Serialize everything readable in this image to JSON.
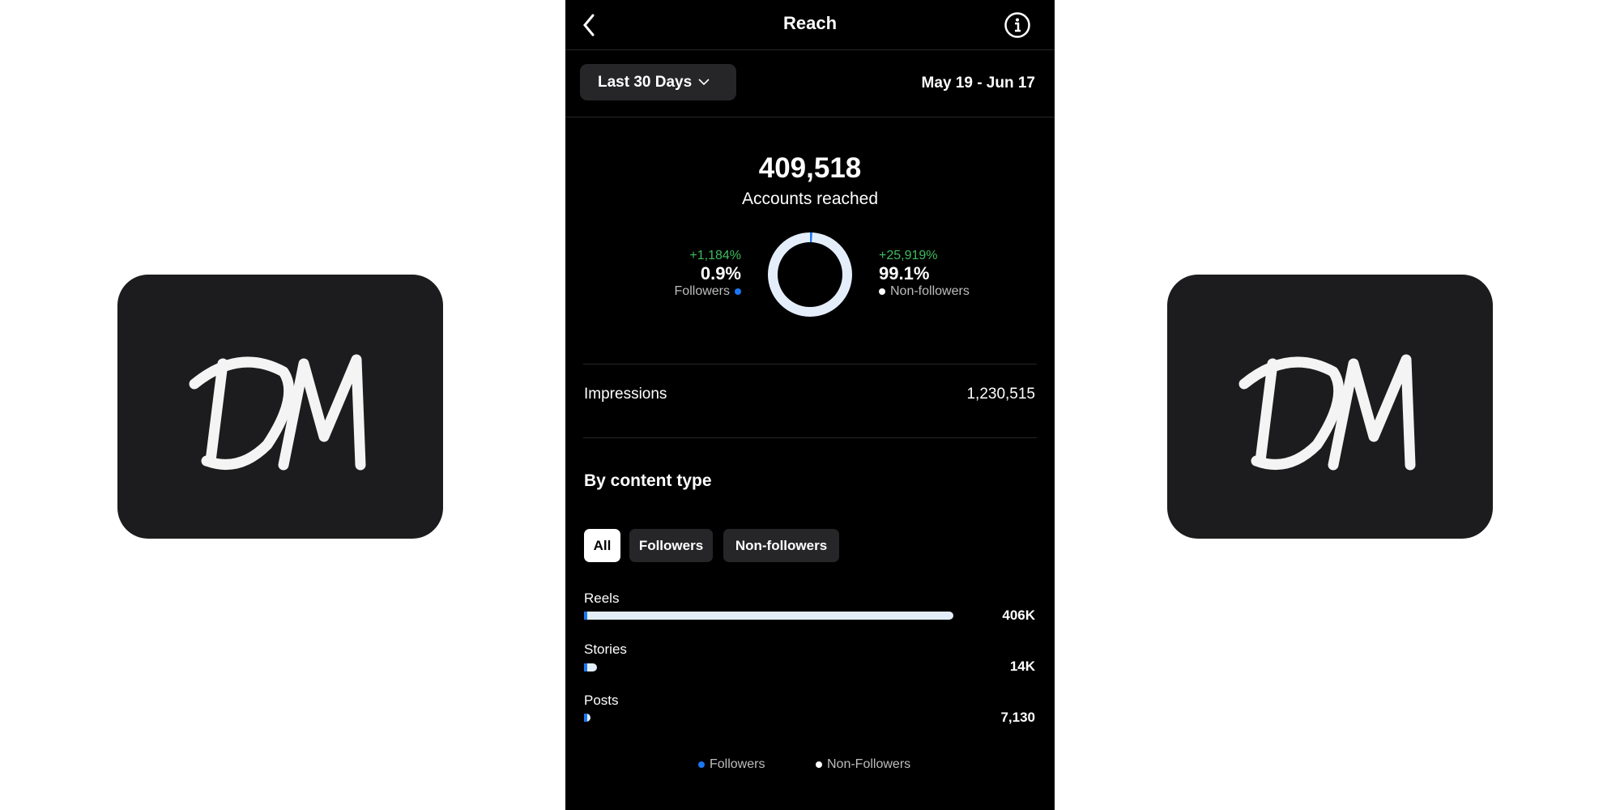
{
  "logo_text": "DM",
  "header": {
    "title": "Reach",
    "back_icon": "chevron-left-icon",
    "info_icon": "info-icon"
  },
  "filter": {
    "selected": "Last 30 Days",
    "date_range": "May 19 - Jun 17"
  },
  "summary": {
    "value": "409,518",
    "label": "Accounts reached",
    "followers": {
      "change": "+1,184%",
      "percent": "0.9%",
      "label": "Followers",
      "share": 0.9
    },
    "non_followers": {
      "change": "+25,919%",
      "percent": "99.1%",
      "label": "Non-followers",
      "share": 99.1
    }
  },
  "impressions": {
    "label": "Impressions",
    "value": "1,230,515"
  },
  "content": {
    "title": "By content type",
    "tabs": [
      {
        "label": "All",
        "active": true
      },
      {
        "label": "Followers"
      },
      {
        "label": "Non-followers"
      }
    ],
    "items": [
      {
        "label": "Reels",
        "value_label": "406K",
        "value": 406000
      },
      {
        "label": "Stories",
        "value_label": "14K",
        "value": 14000
      },
      {
        "label": "Posts",
        "value_label": "7,130",
        "value": 7130
      }
    ],
    "legend": [
      "Followers",
      "Non-Followers"
    ]
  },
  "colors": {
    "followers": "#1a77f2",
    "non_followers": "#e4eefb",
    "positive": "#3dbb5d"
  }
}
